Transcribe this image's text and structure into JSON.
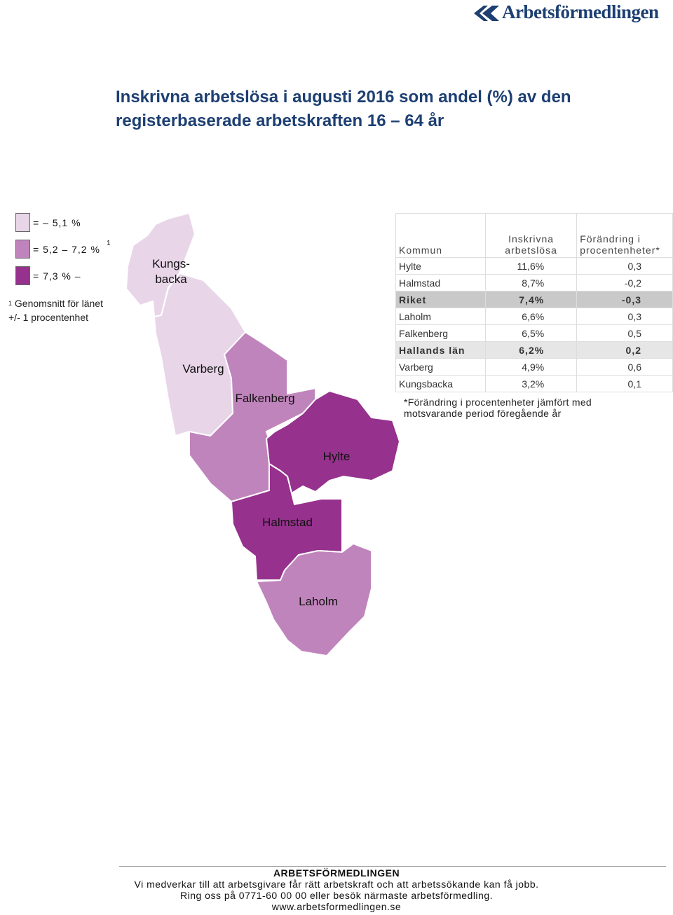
{
  "brand": {
    "name": "Arbetsförmedlingen",
    "color": "#1d3f72"
  },
  "title": {
    "line1": "Inskrivna arbetslösa i augusti 2016 som andel (%) av den",
    "line2": "registerbaserade arbetskraften 16 – 64 år"
  },
  "legend": {
    "items": [
      {
        "label": "=      – 5,1 %",
        "color": "#e8d5e8",
        "sup": ""
      },
      {
        "label": "= 5,2  – 7,2 %",
        "color": "#c084bc",
        "sup": "1"
      },
      {
        "label": "= 7,3 %  –",
        "color": "#96318d",
        "sup": ""
      }
    ],
    "footnote_sup": "1",
    "footnote_line1": "Genomsnitt för länet",
    "footnote_line2": "+/- 1 procentenhet"
  },
  "map": {
    "municipalities": [
      {
        "name": "Kungs-",
        "name2": "backa",
        "value": 3.2,
        "color": "#e8d5e8"
      },
      {
        "name": "Varberg",
        "value": 4.9,
        "color": "#e8d5e8"
      },
      {
        "name": "Falkenberg",
        "value": 6.5,
        "color": "#c084bc"
      },
      {
        "name": "Hylte",
        "value": 11.6,
        "color": "#96318d"
      },
      {
        "name": "Halmstad",
        "value": 8.7,
        "color": "#96318d"
      },
      {
        "name": "Laholm",
        "value": 6.6,
        "color": "#c084bc"
      }
    ]
  },
  "table": {
    "headers": {
      "kommun": "Kommun",
      "inskrivna_1": "Inskrivna",
      "inskrivna_2": "arbetslösa",
      "forandring_1": "Förändring i",
      "forandring_2": "procentenheter*"
    },
    "rows": [
      {
        "kommun": "Hylte",
        "andel": "11,6%",
        "forandring": "0,3",
        "type": "normal"
      },
      {
        "kommun": "Halmstad",
        "andel": "8,7%",
        "forandring": "-0,2",
        "type": "normal"
      },
      {
        "kommun": "Riket",
        "andel": "7,4%",
        "forandring": "-0,3",
        "type": "riket"
      },
      {
        "kommun": "Laholm",
        "andel": "6,6%",
        "forandring": "0,3",
        "type": "normal"
      },
      {
        "kommun": "Falkenberg",
        "andel": "6,5%",
        "forandring": "0,5",
        "type": "normal"
      },
      {
        "kommun": "Hallands län",
        "andel": "6,2%",
        "forandring": "0,2",
        "type": "lan"
      },
      {
        "kommun": "Varberg",
        "andel": "4,9%",
        "forandring": "0,6",
        "type": "normal"
      },
      {
        "kommun": "Kungsbacka",
        "andel": "3,2%",
        "forandring": "0,1",
        "type": "normal"
      }
    ],
    "note_line1": "*Förändring i procentenheter jämfört med",
    "note_line2": "motsvarande period föregående år"
  },
  "footer": {
    "org": "ARBETSFÖRMEDLINGEN",
    "line1": "Vi medverkar till att arbetsgivare får rätt arbetskraft och att arbetssökande kan få jobb.",
    "line2": "Ring oss på 0771-60 00 00 eller besök närmaste arbetsförmedling.",
    "url": "www.arbetsformedlingen.se"
  }
}
